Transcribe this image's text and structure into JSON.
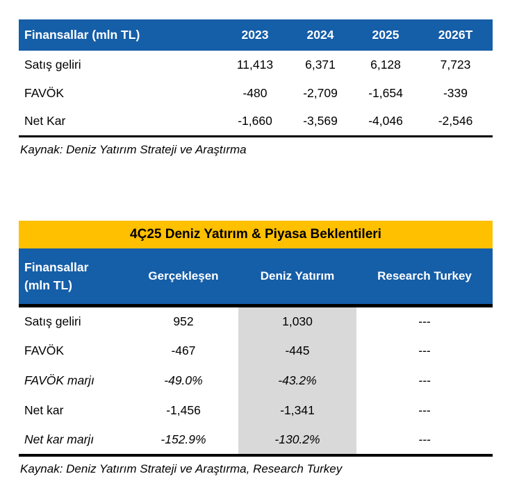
{
  "colors": {
    "header_blue": "#155EA8",
    "title_yellow": "#FFC000",
    "highlight_gray": "#D9D9D9",
    "rule_black": "#000000"
  },
  "table1": {
    "header": {
      "label": "Finansallar (mln TL)",
      "years": [
        "2023",
        "2024",
        "2025",
        "2026T"
      ]
    },
    "rows": [
      {
        "label": "Satış geliri",
        "values": [
          "11,413",
          "6,371",
          "6,128",
          "7,723"
        ]
      },
      {
        "label": "FAVÖK",
        "values": [
          "-480",
          "-2,709",
          "-1,654",
          "-339"
        ]
      },
      {
        "label": "Net Kar",
        "values": [
          "-1,660",
          "-3,569",
          "-4,046",
          "-2,546"
        ]
      }
    ],
    "source": "Kaynak: Deniz Yatırım Strateji ve Araştırma"
  },
  "table2": {
    "title": "4Ç25 Deniz Yatırım & Piyasa Beklentileri",
    "header": {
      "label_line1": "Finansallar",
      "label_line2": "(mln TL)",
      "cols": [
        "Gerçekleşen",
        "Deniz Yatırım",
        "Research Turkey"
      ]
    },
    "rows": [
      {
        "label": "Satış geliri",
        "values": [
          "952",
          "1,030",
          "---"
        ]
      },
      {
        "label": "FAVÖK",
        "values": [
          "-467",
          "-445",
          "---"
        ]
      },
      {
        "label": "FAVÖK marjı",
        "values": [
          "-49.0%",
          "-43.2%",
          "---"
        ]
      },
      {
        "label": "Net kar",
        "values": [
          "-1,456",
          "-1,341",
          "---"
        ]
      },
      {
        "label": "Net kar marjı",
        "values": [
          "-152.9%",
          "-130.2%",
          "---"
        ]
      }
    ],
    "source": "Kaynak: Deniz Yatırım Strateji ve Araştırma, Research Turkey"
  }
}
